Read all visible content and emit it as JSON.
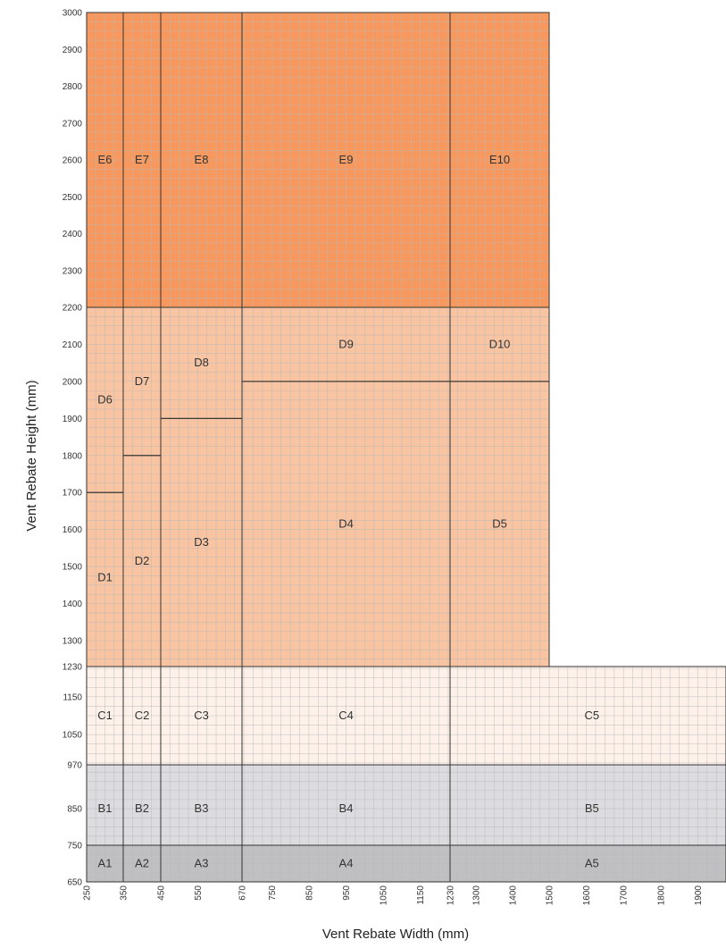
{
  "chart_data": {
    "type": "heatmap",
    "title": "",
    "xlabel": "Vent Rebate Width (mm)",
    "ylabel": "Vent Rebate Height (mm)",
    "xlim": [
      250,
      2000
    ],
    "ylim": [
      650,
      3000
    ],
    "grid": true,
    "x_ticks": [
      "250",
      "350",
      "450",
      "550",
      "670",
      "750",
      "850",
      "950",
      "1050",
      "1150",
      "1230",
      "1300",
      "1400",
      "1500",
      "1600",
      "1700",
      "1800",
      "1900"
    ],
    "y_ticks": [
      "650",
      "750",
      "850",
      "970",
      "1050",
      "1150",
      "1230",
      "1300",
      "1400",
      "1500",
      "1600",
      "1700",
      "1800",
      "1900",
      "2000",
      "2100",
      "2200",
      "2300",
      "2400",
      "2500",
      "2600",
      "2700",
      "2800",
      "2900",
      "3000"
    ],
    "colors": {
      "A": "#c0c0c2",
      "B": "#dcdce0",
      "C": "#fdf1ea",
      "D": "#f8c4a2",
      "E": "#f7995e",
      "grid": "#b8b8b8",
      "zone_border": "#333333"
    },
    "zones": [
      {
        "label": "A1",
        "band": "A",
        "x": [
          250,
          350
        ],
        "y": [
          650,
          750
        ]
      },
      {
        "label": "A2",
        "band": "A",
        "x": [
          350,
          450
        ],
        "y": [
          650,
          750
        ]
      },
      {
        "label": "A3",
        "band": "A",
        "x": [
          450,
          670
        ],
        "y": [
          650,
          750
        ]
      },
      {
        "label": "A4",
        "band": "A",
        "x": [
          670,
          1230
        ],
        "y": [
          650,
          750
        ]
      },
      {
        "label": "A5",
        "band": "A",
        "x": [
          1230,
          2000
        ],
        "y": [
          650,
          750
        ]
      },
      {
        "label": "B1",
        "band": "B",
        "x": [
          250,
          350
        ],
        "y": [
          750,
          970
        ]
      },
      {
        "label": "B2",
        "band": "B",
        "x": [
          350,
          450
        ],
        "y": [
          750,
          970
        ]
      },
      {
        "label": "B3",
        "band": "B",
        "x": [
          450,
          670
        ],
        "y": [
          750,
          970
        ]
      },
      {
        "label": "B4",
        "band": "B",
        "x": [
          670,
          1230
        ],
        "y": [
          750,
          970
        ]
      },
      {
        "label": "B5",
        "band": "B",
        "x": [
          1230,
          2000
        ],
        "y": [
          750,
          970
        ]
      },
      {
        "label": "C1",
        "band": "C",
        "x": [
          250,
          350
        ],
        "y": [
          970,
          1230
        ]
      },
      {
        "label": "C2",
        "band": "C",
        "x": [
          350,
          450
        ],
        "y": [
          970,
          1230
        ]
      },
      {
        "label": "C3",
        "band": "C",
        "x": [
          450,
          670
        ],
        "y": [
          970,
          1230
        ]
      },
      {
        "label": "C4",
        "band": "C",
        "x": [
          670,
          1230
        ],
        "y": [
          970,
          1230
        ]
      },
      {
        "label": "C5",
        "band": "C",
        "x": [
          1230,
          2000
        ],
        "y": [
          970,
          1230
        ]
      },
      {
        "label": "D1",
        "band": "D",
        "x": [
          250,
          350
        ],
        "y": [
          1230,
          1700
        ]
      },
      {
        "label": "D2",
        "band": "D",
        "x": [
          350,
          450
        ],
        "y": [
          1230,
          1800
        ]
      },
      {
        "label": "D3",
        "band": "D",
        "x": [
          450,
          670
        ],
        "y": [
          1230,
          1900
        ]
      },
      {
        "label": "D4",
        "band": "D",
        "x": [
          670,
          1230
        ],
        "y": [
          1230,
          2000
        ]
      },
      {
        "label": "D5",
        "band": "D",
        "x": [
          1230,
          1500
        ],
        "y": [
          1230,
          2000
        ]
      },
      {
        "label": "D6",
        "band": "D",
        "x": [
          250,
          350
        ],
        "y": [
          1700,
          2200
        ]
      },
      {
        "label": "D7",
        "band": "D",
        "x": [
          350,
          450
        ],
        "y": [
          1800,
          2200
        ]
      },
      {
        "label": "D8",
        "band": "D",
        "x": [
          450,
          670
        ],
        "y": [
          1900,
          2200
        ]
      },
      {
        "label": "D9",
        "band": "D",
        "x": [
          670,
          1230
        ],
        "y": [
          2000,
          2200
        ]
      },
      {
        "label": "D10",
        "band": "D",
        "x": [
          1230,
          1500
        ],
        "y": [
          2000,
          2200
        ]
      },
      {
        "label": "E6",
        "band": "E",
        "x": [
          250,
          350
        ],
        "y": [
          2200,
          3000
        ]
      },
      {
        "label": "E7",
        "band": "E",
        "x": [
          350,
          450
        ],
        "y": [
          2200,
          3000
        ]
      },
      {
        "label": "E8",
        "band": "E",
        "x": [
          450,
          670
        ],
        "y": [
          2200,
          3000
        ]
      },
      {
        "label": "E9",
        "band": "E",
        "x": [
          670,
          1230
        ],
        "y": [
          2200,
          3000
        ]
      },
      {
        "label": "E10",
        "band": "E",
        "x": [
          1230,
          1500
        ],
        "y": [
          2200,
          3000
        ]
      }
    ]
  }
}
